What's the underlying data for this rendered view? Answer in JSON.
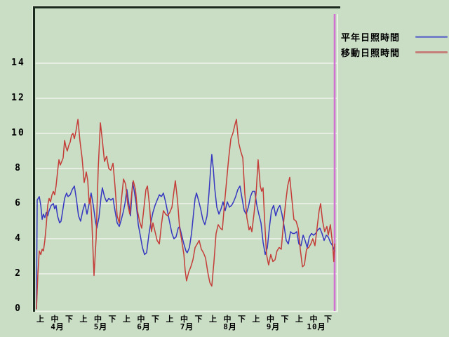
{
  "legend": {
    "items": [
      {
        "label": "平年日照時間"
      },
      {
        "label": "移動日照時間"
      }
    ]
  },
  "chart_data": {
    "type": "line",
    "title": "",
    "colors": {
      "background": "#cadec6",
      "frame": "#1b2b1e",
      "frame_highlight": "#e4ecdd",
      "grid": "#eef4ea",
      "marker": "#d171d1",
      "text": "#000000"
    },
    "x_axis": {
      "months": [
        "4月",
        "5月",
        "6月",
        "7月",
        "8月",
        "9月",
        "10月"
      ],
      "jun_labels": [
        "上",
        "中",
        "下"
      ],
      "num_periods": 21,
      "grid": false
    },
    "y_axis": {
      "ticks": [
        0,
        2,
        4,
        6,
        8,
        10,
        12,
        14
      ],
      "tick_labels": [
        "0",
        "2",
        "4",
        "6",
        "8",
        "10",
        "12",
        "14"
      ],
      "min": 0,
      "max_displayed": 14,
      "grid": true
    },
    "marker": {
      "position_period": 21,
      "color": "#d171d1"
    },
    "series": [
      {
        "name": "平年日照時間",
        "color": "#3637c0",
        "legend_color": "#7583c6",
        "points": [
          [
            0,
            0
          ],
          [
            0.05,
            6.2
          ],
          [
            0.2,
            6.4
          ],
          [
            0.3,
            5.9
          ],
          [
            0.4,
            5.1
          ],
          [
            0.49,
            5.4
          ],
          [
            0.59,
            5.2
          ],
          [
            0.69,
            5.5
          ],
          [
            0.79,
            5.3
          ],
          [
            0.89,
            5.6
          ],
          [
            1.04,
            5.9
          ],
          [
            1.19,
            6
          ],
          [
            1.28,
            5.7
          ],
          [
            1.38,
            5.9
          ],
          [
            1.48,
            5.3
          ],
          [
            1.63,
            4.9
          ],
          [
            1.73,
            5
          ],
          [
            1.83,
            5.5
          ],
          [
            1.98,
            6.3
          ],
          [
            2.12,
            6.6
          ],
          [
            2.22,
            6.4
          ],
          [
            2.37,
            6.5
          ],
          [
            2.52,
            6.8
          ],
          [
            2.67,
            7
          ],
          [
            2.82,
            6.2
          ],
          [
            2.96,
            5.3
          ],
          [
            3.11,
            5
          ],
          [
            3.26,
            5.6
          ],
          [
            3.41,
            6
          ],
          [
            3.56,
            5.4
          ],
          [
            3.71,
            6
          ],
          [
            3.85,
            6.6
          ],
          [
            4,
            5.9
          ],
          [
            4.15,
            5
          ],
          [
            4.25,
            4.6
          ],
          [
            4.4,
            5.2
          ],
          [
            4.55,
            6.4
          ],
          [
            4.64,
            6.9
          ],
          [
            4.79,
            6.4
          ],
          [
            4.94,
            6.1
          ],
          [
            5.09,
            6.3
          ],
          [
            5.24,
            6.2
          ],
          [
            5.39,
            6.3
          ],
          [
            5.53,
            5.6
          ],
          [
            5.68,
            4.9
          ],
          [
            5.83,
            4.7
          ],
          [
            5.98,
            5.1
          ],
          [
            6.13,
            5.6
          ],
          [
            6.23,
            6
          ],
          [
            6.37,
            6.8
          ],
          [
            6.52,
            5.9
          ],
          [
            6.62,
            5.3
          ],
          [
            6.77,
            7.2
          ],
          [
            6.87,
            6.8
          ],
          [
            7.02,
            6
          ],
          [
            7.17,
            4.8
          ],
          [
            7.31,
            4.2
          ],
          [
            7.46,
            3.5
          ],
          [
            7.61,
            3.1
          ],
          [
            7.76,
            3.2
          ],
          [
            7.91,
            4.2
          ],
          [
            8.05,
            4.9
          ],
          [
            8.2,
            5.5
          ],
          [
            8.35,
            5.9
          ],
          [
            8.5,
            6.2
          ],
          [
            8.65,
            6.5
          ],
          [
            8.8,
            6.4
          ],
          [
            8.94,
            6.6
          ],
          [
            9.09,
            6.1
          ],
          [
            9.24,
            5.5
          ],
          [
            9.39,
            4.9
          ],
          [
            9.54,
            4.3
          ],
          [
            9.68,
            4
          ],
          [
            9.83,
            4.1
          ],
          [
            9.98,
            4.6
          ],
          [
            10.08,
            4.7
          ],
          [
            10.23,
            4.2
          ],
          [
            10.38,
            3.7
          ],
          [
            10.53,
            3.3
          ],
          [
            10.62,
            3.2
          ],
          [
            10.77,
            3.5
          ],
          [
            10.92,
            4.3
          ],
          [
            11.07,
            5.5
          ],
          [
            11.17,
            6.3
          ],
          [
            11.27,
            6.6
          ],
          [
            11.41,
            6.2
          ],
          [
            11.56,
            5.7
          ],
          [
            11.71,
            5.1
          ],
          [
            11.86,
            4.8
          ],
          [
            12.01,
            5.3
          ],
          [
            12.15,
            6.6
          ],
          [
            12.25,
            7.8
          ],
          [
            12.35,
            8.8
          ],
          [
            12.45,
            8
          ],
          [
            12.55,
            6.9
          ],
          [
            12.7,
            5.8
          ],
          [
            12.85,
            5.4
          ],
          [
            13,
            5.7
          ],
          [
            13.14,
            6.1
          ],
          [
            13.29,
            5.6
          ],
          [
            13.44,
            6.1
          ],
          [
            13.59,
            5.8
          ],
          [
            13.74,
            5.9
          ],
          [
            13.88,
            6.1
          ],
          [
            14.03,
            6.4
          ],
          [
            14.18,
            6.8
          ],
          [
            14.33,
            7
          ],
          [
            14.48,
            6.3
          ],
          [
            14.63,
            5.6
          ],
          [
            14.77,
            5.4
          ],
          [
            14.92,
            5.8
          ],
          [
            15.07,
            6.4
          ],
          [
            15.22,
            6.7
          ],
          [
            15.37,
            6.7
          ],
          [
            15.52,
            5.9
          ],
          [
            15.66,
            5.4
          ],
          [
            15.81,
            4.9
          ],
          [
            15.96,
            3.8
          ],
          [
            16.11,
            3.1
          ],
          [
            16.26,
            3.5
          ],
          [
            16.4,
            4.6
          ],
          [
            16.55,
            5.6
          ],
          [
            16.7,
            5.9
          ],
          [
            16.85,
            5.3
          ],
          [
            17,
            5.7
          ],
          [
            17.14,
            5.9
          ],
          [
            17.29,
            5.4
          ],
          [
            17.44,
            4.7
          ],
          [
            17.59,
            3.9
          ],
          [
            17.74,
            3.7
          ],
          [
            17.89,
            4.4
          ],
          [
            18.03,
            4.3
          ],
          [
            18.18,
            4.3
          ],
          [
            18.33,
            4.4
          ],
          [
            18.48,
            3.7
          ],
          [
            18.63,
            3.6
          ],
          [
            18.78,
            4.2
          ],
          [
            18.92,
            3.9
          ],
          [
            19.07,
            3.5
          ],
          [
            19.22,
            4.1
          ],
          [
            19.37,
            4.3
          ],
          [
            19.52,
            4.2
          ],
          [
            19.66,
            4.3
          ],
          [
            19.81,
            4.5
          ],
          [
            19.96,
            4.6
          ],
          [
            20.11,
            4.3
          ],
          [
            20.26,
            3.9
          ],
          [
            20.41,
            4.2
          ],
          [
            20.55,
            4.1
          ],
          [
            20.7,
            3.8
          ],
          [
            20.85,
            3.6
          ],
          [
            21,
            3.3
          ]
        ]
      },
      {
        "name": "移動日照時間",
        "color": "#c43d38",
        "legend_color": "#c67e79",
        "points": [
          [
            0,
            0
          ],
          [
            0.1,
            2
          ],
          [
            0.2,
            3.3
          ],
          [
            0.3,
            3.1
          ],
          [
            0.4,
            3.4
          ],
          [
            0.49,
            3.3
          ],
          [
            0.59,
            3.9
          ],
          [
            0.69,
            4.8
          ],
          [
            0.79,
            5.9
          ],
          [
            0.89,
            6.3
          ],
          [
            0.99,
            6.1
          ],
          [
            1.09,
            6.5
          ],
          [
            1.19,
            6.7
          ],
          [
            1.28,
            6.5
          ],
          [
            1.38,
            7
          ],
          [
            1.48,
            7.8
          ],
          [
            1.58,
            8.5
          ],
          [
            1.68,
            8.2
          ],
          [
            1.78,
            8.4
          ],
          [
            1.88,
            8.6
          ],
          [
            1.98,
            9.6
          ],
          [
            2.08,
            9.2
          ],
          [
            2.17,
            9
          ],
          [
            2.27,
            9.3
          ],
          [
            2.37,
            9.5
          ],
          [
            2.47,
            9.9
          ],
          [
            2.57,
            10
          ],
          [
            2.67,
            9.7
          ],
          [
            2.77,
            10.1
          ],
          [
            2.92,
            10.8
          ],
          [
            3.06,
            9.6
          ],
          [
            3.21,
            8.6
          ],
          [
            3.36,
            7.2
          ],
          [
            3.51,
            7.8
          ],
          [
            3.61,
            7.3
          ],
          [
            3.71,
            6
          ],
          [
            3.8,
            6.4
          ],
          [
            3.9,
            5
          ],
          [
            4.05,
            1.9
          ],
          [
            4.2,
            4
          ],
          [
            4.35,
            8
          ],
          [
            4.5,
            10.6
          ],
          [
            4.64,
            9.6
          ],
          [
            4.79,
            8.4
          ],
          [
            4.94,
            8.7
          ],
          [
            5.09,
            8
          ],
          [
            5.24,
            7.9
          ],
          [
            5.39,
            8.3
          ],
          [
            5.53,
            7
          ],
          [
            5.68,
            5.3
          ],
          [
            5.83,
            4.9
          ],
          [
            5.98,
            6.2
          ],
          [
            6.13,
            7.4
          ],
          [
            6.28,
            7.1
          ],
          [
            6.42,
            6
          ],
          [
            6.57,
            5.4
          ],
          [
            6.72,
            6.7
          ],
          [
            6.82,
            7.3
          ],
          [
            6.97,
            6.8
          ],
          [
            7.11,
            5.6
          ],
          [
            7.26,
            5
          ],
          [
            7.41,
            4.6
          ],
          [
            7.56,
            5.7
          ],
          [
            7.71,
            6.8
          ],
          [
            7.81,
            7
          ],
          [
            7.96,
            5.9
          ],
          [
            8.1,
            4.4
          ],
          [
            8.2,
            4.9
          ],
          [
            8.35,
            4.4
          ],
          [
            8.5,
            3.9
          ],
          [
            8.65,
            3.7
          ],
          [
            8.8,
            4.8
          ],
          [
            8.94,
            5.6
          ],
          [
            9.09,
            5.4
          ],
          [
            9.24,
            5.3
          ],
          [
            9.39,
            5.5
          ],
          [
            9.54,
            5.8
          ],
          [
            9.68,
            6.7
          ],
          [
            9.78,
            7.3
          ],
          [
            9.93,
            6.2
          ],
          [
            10.08,
            4.6
          ],
          [
            10.23,
            3.9
          ],
          [
            10.38,
            3.1
          ],
          [
            10.47,
            2.2
          ],
          [
            10.57,
            1.6
          ],
          [
            10.72,
            2.1
          ],
          [
            10.87,
            2.4
          ],
          [
            11.02,
            2.8
          ],
          [
            11.17,
            3.5
          ],
          [
            11.32,
            3.7
          ],
          [
            11.46,
            3.9
          ],
          [
            11.61,
            3.4
          ],
          [
            11.76,
            3.2
          ],
          [
            11.91,
            2.9
          ],
          [
            12.06,
            2.1
          ],
          [
            12.21,
            1.5
          ],
          [
            12.35,
            1.3
          ],
          [
            12.5,
            2.7
          ],
          [
            12.65,
            4.3
          ],
          [
            12.8,
            4.8
          ],
          [
            12.95,
            4.6
          ],
          [
            13.09,
            4.5
          ],
          [
            13.24,
            6
          ],
          [
            13.39,
            7.3
          ],
          [
            13.54,
            8.6
          ],
          [
            13.69,
            9.7
          ],
          [
            13.83,
            10
          ],
          [
            13.98,
            10.5
          ],
          [
            14.08,
            10.8
          ],
          [
            14.23,
            9.5
          ],
          [
            14.38,
            9
          ],
          [
            14.53,
            8.6
          ],
          [
            14.67,
            6.6
          ],
          [
            14.82,
            5.2
          ],
          [
            14.97,
            4.5
          ],
          [
            15.07,
            4.7
          ],
          [
            15.17,
            4.4
          ],
          [
            15.32,
            5.4
          ],
          [
            15.47,
            6.6
          ],
          [
            15.61,
            8.5
          ],
          [
            15.76,
            7
          ],
          [
            15.86,
            6.7
          ],
          [
            15.96,
            6.9
          ],
          [
            16.06,
            5.2
          ],
          [
            16.2,
            3.1
          ],
          [
            16.35,
            2.5
          ],
          [
            16.5,
            3.1
          ],
          [
            16.65,
            2.7
          ],
          [
            16.8,
            2.8
          ],
          [
            16.94,
            3.3
          ],
          [
            17.09,
            3.5
          ],
          [
            17.24,
            3.4
          ],
          [
            17.39,
            4.8
          ],
          [
            17.54,
            6
          ],
          [
            17.69,
            7
          ],
          [
            17.84,
            7.5
          ],
          [
            17.98,
            6.3
          ],
          [
            18.13,
            5.1
          ],
          [
            18.28,
            5
          ],
          [
            18.43,
            4.6
          ],
          [
            18.58,
            3.4
          ],
          [
            18.73,
            2.4
          ],
          [
            18.87,
            2.5
          ],
          [
            19.02,
            3.4
          ],
          [
            19.17,
            3.5
          ],
          [
            19.32,
            3.7
          ],
          [
            19.46,
            4
          ],
          [
            19.61,
            3.6
          ],
          [
            19.76,
            4.6
          ],
          [
            19.91,
            5.6
          ],
          [
            20.01,
            6
          ],
          [
            20.15,
            5
          ],
          [
            20.3,
            4.4
          ],
          [
            20.45,
            4.7
          ],
          [
            20.55,
            4.2
          ],
          [
            20.7,
            4.8
          ],
          [
            20.85,
            3.7
          ],
          [
            20.94,
            2.7
          ],
          [
            21,
            3.7
          ]
        ]
      }
    ]
  }
}
